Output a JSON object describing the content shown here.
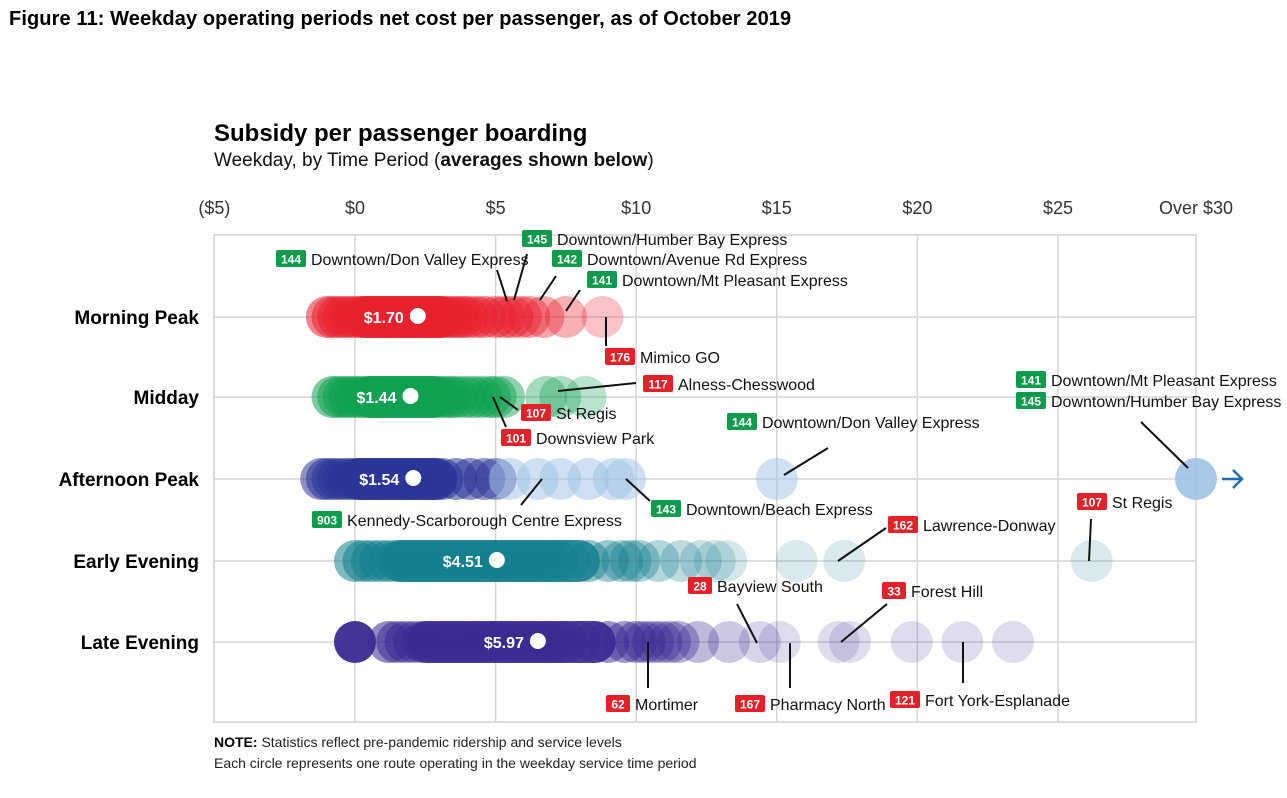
{
  "figure_title": "Figure 11: Weekday operating periods net cost per passenger, as of October 2019",
  "notes": {
    "line1_bold": "NOTE:",
    "line1": "Statistics reflect pre-pandemic ridership and service levels",
    "line2": "Each circle represents one route operating in the weekday service time period"
  },
  "chart_data": {
    "type": "scatter",
    "title": "Subsidy per passenger boarding",
    "subtitle_prefix": "Weekday, by Time Period (",
    "subtitle_bold": "averages shown below",
    "subtitle_suffix": ")",
    "xlabel": "",
    "ylabel": "",
    "xlim": [
      -5,
      30
    ],
    "x_ticks": [
      {
        "value": -5,
        "label": "($5)"
      },
      {
        "value": 0,
        "label": "$0"
      },
      {
        "value": 5,
        "label": "$5"
      },
      {
        "value": 10,
        "label": "$10"
      },
      {
        "value": 15,
        "label": "$15"
      },
      {
        "value": 20,
        "label": "$20"
      },
      {
        "value": 25,
        "label": "$25"
      },
      {
        "value": 30,
        "label": "Over $30"
      }
    ],
    "grid": true,
    "overflow_arrow_color": "#1f6fb5",
    "series": [
      {
        "name": "Morning Peak",
        "color": "#e8212e",
        "average": 1.7,
        "average_label": "$1.70",
        "points": [
          -1.0,
          -0.8,
          -0.6,
          -0.4,
          -0.2,
          0.0,
          0.2,
          0.4,
          0.6,
          0.8,
          1.0,
          1.2,
          1.4,
          1.6,
          1.8,
          2.0,
          2.2,
          2.4,
          2.6,
          2.8,
          3.0,
          3.2,
          3.4,
          3.6,
          3.8,
          4.0,
          4.3,
          4.6,
          5.0,
          5.3,
          5.6,
          5.9,
          6.2,
          6.7,
          7.5,
          8.8
        ]
      },
      {
        "name": "Midday",
        "color": "#0fa050",
        "average": 1.44,
        "average_label": "$1.44",
        "points": [
          -0.8,
          -0.6,
          -0.4,
          -0.2,
          0.0,
          0.2,
          0.4,
          0.6,
          0.8,
          1.0,
          1.2,
          1.4,
          1.6,
          1.8,
          2.0,
          2.2,
          2.4,
          2.6,
          2.8,
          3.0,
          3.2,
          3.4,
          3.6,
          3.9,
          4.2,
          4.5,
          4.8,
          5.0,
          5.3,
          6.8,
          7.3,
          8.2
        ]
      },
      {
        "name": "Afternoon Peak",
        "color": "#2c3598",
        "light_color": "#9ec2e4",
        "average": 1.54,
        "average_label": "$1.54",
        "points": [
          -1.2,
          -1.0,
          -0.8,
          -0.6,
          -0.4,
          -0.2,
          0.0,
          0.2,
          0.4,
          0.6,
          0.8,
          1.0,
          1.2,
          1.4,
          1.6,
          1.8,
          2.0,
          2.2,
          2.4,
          2.6,
          2.8,
          3.1,
          3.6,
          4.1,
          4.6,
          5.0,
          5.5,
          6.5,
          7.3,
          8.3,
          9.2,
          9.6,
          15.0,
          30.0
        ]
      },
      {
        "name": "Early Evening",
        "color": "#137f8e",
        "average": 4.51,
        "average_label": "$4.51",
        "points": [
          0.0,
          0.3,
          0.6,
          0.9,
          1.2,
          1.5,
          1.8,
          2.1,
          2.4,
          2.7,
          3.0,
          3.3,
          3.6,
          3.9,
          4.2,
          4.5,
          4.8,
          5.1,
          5.4,
          5.7,
          6.0,
          6.3,
          6.6,
          6.9,
          7.2,
          7.6,
          8.3,
          9.0,
          9.5,
          9.8,
          10.1,
          10.8,
          11.6,
          12.3,
          12.8,
          13.2,
          15.7,
          17.4,
          26.2
        ]
      },
      {
        "name": "Late Evening",
        "color": "#3a2a92",
        "average": 5.97,
        "average_label": "$5.97",
        "points": [
          0.0,
          1.2,
          1.5,
          1.8,
          2.1,
          2.4,
          2.7,
          3.0,
          3.3,
          3.6,
          3.9,
          4.2,
          4.5,
          4.8,
          5.1,
          5.4,
          5.7,
          6.0,
          6.3,
          6.6,
          6.9,
          7.2,
          7.5,
          8.0,
          8.5,
          9.0,
          9.6,
          10.0,
          10.3,
          10.6,
          10.9,
          11.2,
          11.5,
          12.2,
          13.3,
          14.4,
          15.1,
          17.2,
          17.6,
          19.8,
          21.6,
          23.4
        ]
      }
    ],
    "annotations": [
      {
        "period": "Morning Peak",
        "route": "144",
        "name": "Downtown/Don Valley Express",
        "badge": "green",
        "value": 5.4
      },
      {
        "period": "Morning Peak",
        "route": "145",
        "name": "Downtown/Humber Bay Express",
        "badge": "green",
        "value": 5.7
      },
      {
        "period": "Morning Peak",
        "route": "142",
        "name": "Downtown/Avenue Rd Express",
        "badge": "green",
        "value": 6.4
      },
      {
        "period": "Morning Peak",
        "route": "141",
        "name": "Downtown/Mt Pleasant Express",
        "badge": "green",
        "value": 7.6
      },
      {
        "period": "Morning Peak",
        "route": "176",
        "name": "Mimico GO",
        "badge": "red",
        "value": 8.9
      },
      {
        "period": "Midday",
        "route": "117",
        "name": "Alness-Chesswood",
        "badge": "red",
        "value": 7.3
      },
      {
        "period": "Midday",
        "route": "107",
        "name": "St Regis",
        "badge": "red",
        "value": 5.3
      },
      {
        "period": "Midday",
        "route": "101",
        "name": "Downsview Park",
        "badge": "red",
        "value": 4.9
      },
      {
        "period": "Afternoon Peak",
        "route": "141",
        "name": "Downtown/Mt Pleasant Express",
        "badge": "green",
        "value": 30.0
      },
      {
        "period": "Afternoon Peak",
        "route": "145",
        "name": "Downtown/Humber Bay Express",
        "badge": "green",
        "value": 30.0
      },
      {
        "period": "Afternoon Peak",
        "route": "144",
        "name": "Downtown/Don Valley Express",
        "badge": "green",
        "value": 15.0
      },
      {
        "period": "Afternoon Peak",
        "route": "903",
        "name": "Kennedy-Scarborough Centre Express",
        "badge": "green",
        "value": 6.5
      },
      {
        "period": "Afternoon Peak",
        "route": "143",
        "name": "Downtown/Beach Express",
        "badge": "green",
        "value": 9.5
      },
      {
        "period": "Early Evening",
        "route": "107",
        "name": "St Regis",
        "badge": "red",
        "value": 26.2
      },
      {
        "period": "Early Evening",
        "route": "162",
        "name": "Lawrence-Donway",
        "badge": "red",
        "value": 17.4
      },
      {
        "period": "Late Evening",
        "route": "28",
        "name": "Bayview South",
        "badge": "red",
        "value": 14.4
      },
      {
        "period": "Late Evening",
        "route": "33",
        "name": "Forest Hill",
        "badge": "red",
        "value": 17.6
      },
      {
        "period": "Late Evening",
        "route": "62",
        "name": "Mortimer",
        "badge": "red",
        "value": 10.3
      },
      {
        "period": "Late Evening",
        "route": "167",
        "name": "Pharmacy North",
        "badge": "red",
        "value": 15.4
      },
      {
        "period": "Late Evening",
        "route": "121",
        "name": "Fort York-Esplanade",
        "badge": "red",
        "value": 21.6
      }
    ],
    "badge_colors": {
      "green": "#0c9c4b",
      "red": "#e32129"
    }
  }
}
